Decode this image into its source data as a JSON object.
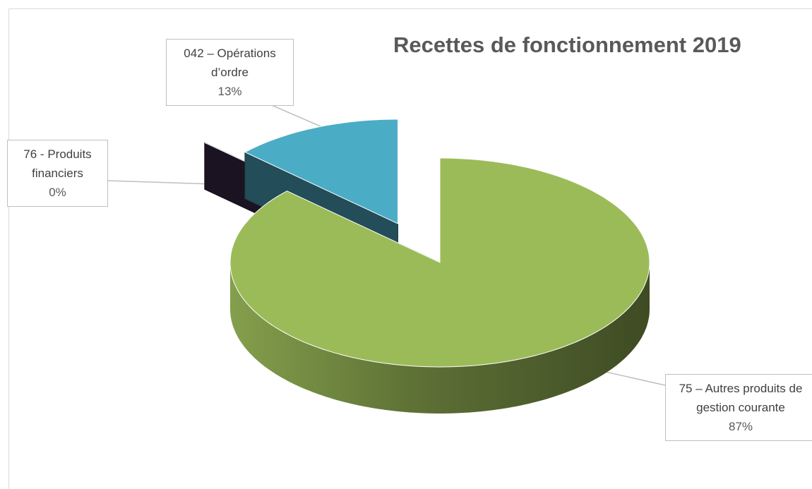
{
  "chart_data": {
    "type": "pie3d",
    "title": "Recettes de fonctionnement 2019",
    "categories": [
      "75 – Autres produits de gestion courante",
      "76 - Produits financiers",
      "042 – Opérations d’ordre"
    ],
    "values": [
      87,
      0,
      13
    ],
    "value_labels": [
      "87%",
      "0%",
      "13%"
    ],
    "colors": [
      "#9bbb59",
      "#3b2b4a",
      "#4bacc6"
    ]
  }
}
